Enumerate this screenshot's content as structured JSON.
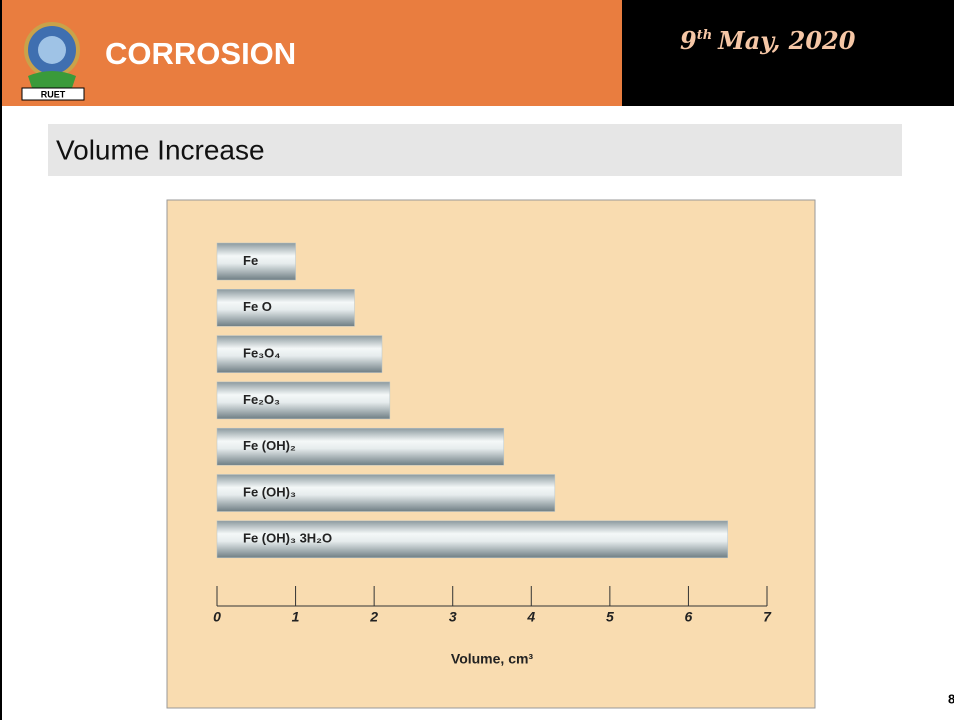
{
  "header": {
    "title": "CORROSION",
    "logo_text": "RUET",
    "date_day": "9",
    "date_suffix": "th",
    "date_rest": "May, 2020"
  },
  "section_title": "Volume Increase",
  "page_number": "8",
  "chart_data": {
    "type": "bar",
    "orientation": "horizontal",
    "categories": [
      "Fe",
      "Fe O",
      "Fe₃O₄",
      "Fe₂O₃",
      "Fe (OH)₂",
      "Fe (OH)₃",
      "Fe (OH)₃ 3H₂O"
    ],
    "values": [
      1.0,
      1.75,
      2.1,
      2.2,
      3.65,
      4.3,
      6.5
    ],
    "xlim": [
      0,
      7
    ],
    "xticks": [
      0,
      1,
      2,
      3,
      4,
      5,
      6,
      7
    ],
    "xlabel": "Volume, cm³",
    "color": "#b8c4c8",
    "background": "#f9dcb0"
  }
}
